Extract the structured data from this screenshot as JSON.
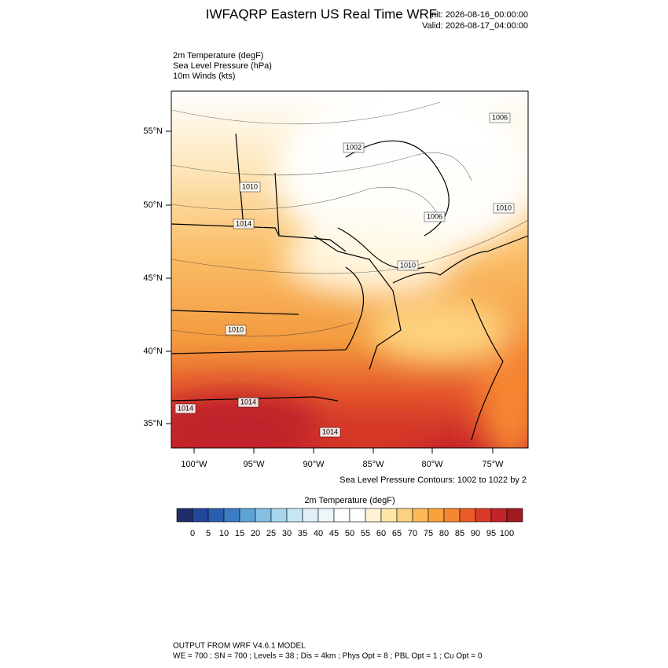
{
  "header": {
    "title": "IWFAQRP Eastern US Real Time WRF",
    "init": "Init: 2026-08-16_00:00:00",
    "valid": "Valid: 2026-08-17_04:00:00"
  },
  "fields": [
    "2m Temperature   (degF)",
    "Sea Level Pressure   (hPa)",
    "10m Winds   (kts)"
  ],
  "map": {
    "lat_labels": [
      "55°N",
      "50°N",
      "45°N",
      "40°N",
      "35°N"
    ],
    "lon_labels": [
      "100°W",
      "95°W",
      "90°W",
      "85°W",
      "80°W",
      "75°W"
    ],
    "contour_labels": [
      "1006",
      "1002",
      "1010",
      "1014",
      "1006",
      "1010",
      "1010",
      "1010",
      "1014",
      "1014",
      "1014"
    ]
  },
  "contour_note": "Sea Level Pressure Contours: 1002 to 1022 by 2",
  "colorbar": {
    "title": "2m Temperature  (degF)",
    "labels": [
      "0",
      "5",
      "10",
      "15",
      "20",
      "25",
      "30",
      "35",
      "40",
      "45",
      "50",
      "55",
      "60",
      "65",
      "70",
      "75",
      "80",
      "85",
      "90",
      "95",
      "100"
    ],
    "colors": [
      "#1f2d6b",
      "#22479a",
      "#2a5fb0",
      "#3b7cc2",
      "#5ea3d6",
      "#82bfe3",
      "#a6d6ef",
      "#c6e6f5",
      "#deeff8",
      "#eef6fb",
      "#fbfdff",
      "#ffffff",
      "#fff3d6",
      "#fee6a8",
      "#fdd27f",
      "#fcb955",
      "#f9a23c",
      "#f58632",
      "#ea5b2b",
      "#d93a27",
      "#c0242a",
      "#9e1b1f"
    ]
  },
  "footer": {
    "line1": "OUTPUT FROM WRF V4.6.1 MODEL",
    "line2": "WE = 700 ; SN = 700 ; Levels = 38 ; Dis = 4km ; Phys Opt = 8 ; PBL Opt = 1 ; Cu Opt = 0"
  }
}
